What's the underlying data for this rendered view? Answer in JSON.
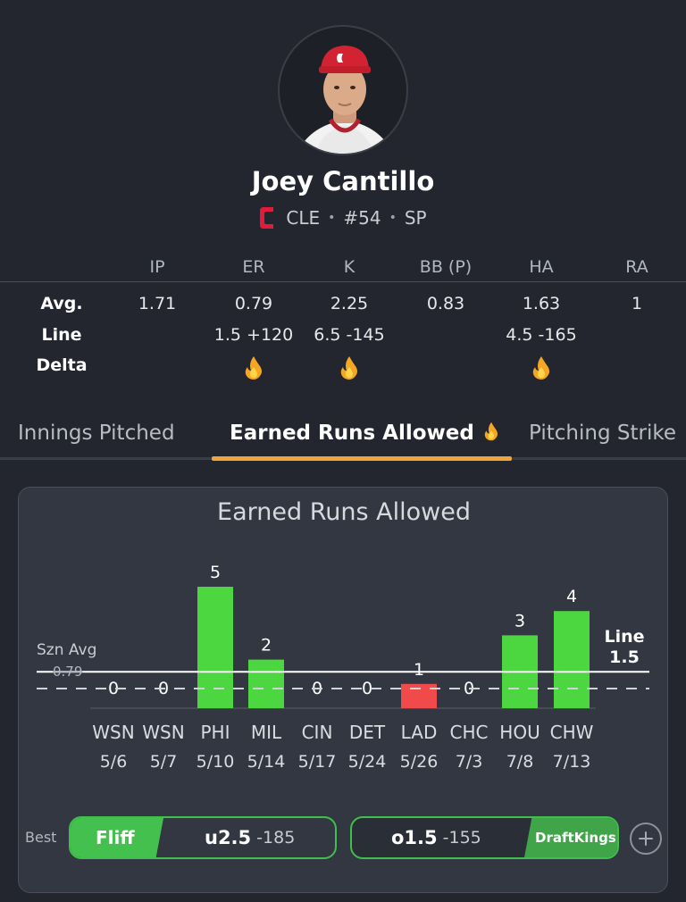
{
  "player": {
    "name": "Joey Cantillo",
    "team": "CLE",
    "number": "#54",
    "position": "SP",
    "avatar_icon": "player-headshot",
    "team_logo_letter": "C"
  },
  "stats": {
    "columns": [
      "IP",
      "ER",
      "K",
      "BB (P)",
      "HA",
      "RA"
    ],
    "rows": [
      {
        "label": "Avg.",
        "values": [
          "1.71",
          "0.79",
          "2.25",
          "0.83",
          "1.63",
          "1"
        ]
      },
      {
        "label": "Line",
        "values": [
          "",
          "1.5 +120",
          "6.5 -145",
          "",
          "4.5 -165",
          ""
        ]
      },
      {
        "label": "Delta",
        "flames": [
          false,
          true,
          true,
          false,
          true,
          false
        ]
      }
    ]
  },
  "tabs": [
    {
      "label": "Innings Pitched",
      "active": false
    },
    {
      "label": "Earned Runs Allowed",
      "active": true,
      "flame": true
    },
    {
      "label": "Pitching Strike",
      "active": false
    }
  ],
  "chart_data": {
    "type": "bar",
    "title": "Earned Runs Allowed",
    "categories": [
      "WSN",
      "WSN",
      "PHI",
      "MIL",
      "CIN",
      "DET",
      "LAD",
      "CHC",
      "HOU",
      "CHW"
    ],
    "dates": [
      "5/6",
      "5/7",
      "5/10",
      "5/14",
      "5/17",
      "5/24",
      "5/26",
      "7/3",
      "7/8",
      "7/13"
    ],
    "values": [
      0,
      0,
      5,
      2,
      0,
      0,
      1,
      0,
      3,
      4
    ],
    "bar_colors": [
      "#4cd640",
      "#4cd640",
      "#4cd640",
      "#4cd640",
      "#4cd640",
      "#4cd640",
      "#f14a4a",
      "#4cd640",
      "#4cd640",
      "#4cd640"
    ],
    "line": {
      "label": "Line",
      "value": 1.5
    },
    "season_avg": {
      "label": "Szn Avg",
      "value": 0.79,
      "value_text": "0.79"
    },
    "ylim": [
      0,
      5
    ]
  },
  "best": {
    "label": "Best",
    "under": {
      "book": "Fliff",
      "pick": "u2.5",
      "odds": "-185"
    },
    "over": {
      "book": "DraftKings",
      "pick": "o1.5",
      "odds": "-155"
    },
    "add_icon": "plus-circle-icon"
  },
  "colors": {
    "background": "#23262e",
    "card": "#323741",
    "accent": "#f0a53a",
    "over_bar": "#4cd640",
    "under_bar": "#f14a4a",
    "book_green": "#3fbf4b"
  }
}
